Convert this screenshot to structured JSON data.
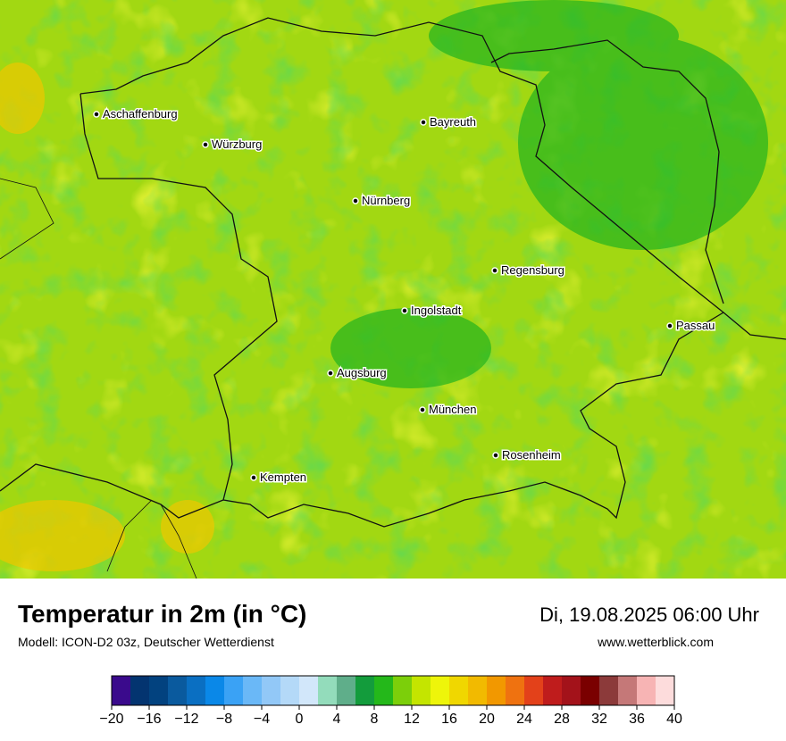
{
  "header": {
    "title": "Temperatur in 2m (in °C)",
    "subtitle": "Modell: ICON-D2 03z, Deutscher Wetterdienst",
    "datetime": "Di, 19.08.2025 06:00 Uhr",
    "website": "www.wetterblick.com"
  },
  "cities": [
    "Aschaffenburg",
    "Würzburg",
    "Bayreuth",
    "Nürnberg",
    "Regensburg",
    "Ingolstadt",
    "Passau",
    "Augsburg",
    "München",
    "Rosenheim",
    "Kempten"
  ],
  "colorbar": {
    "lim": [
      -20,
      40
    ],
    "colors": [
      "#3a0a8c",
      "#033470",
      "#02427f",
      "#0a5a9e",
      "#0a6fc2",
      "#0a88e8",
      "#3aa2f5",
      "#6ab8f7",
      "#92c8f7",
      "#b4d9f8",
      "#d2e7fa",
      "#93dcbb",
      "#5fae8a",
      "#139c3c",
      "#24b81a",
      "#7ccf0a",
      "#c4e500",
      "#eef50a",
      "#f0d700",
      "#f2ba00",
      "#f29800",
      "#ef7210",
      "#e3411a",
      "#bf1c1c",
      "#a3121a",
      "#7a0000",
      "#8c3a3a",
      "#c57878",
      "#f7b4b4",
      "#fddcdc"
    ],
    "ticks": [
      {
        "value": -20,
        "label": "−20"
      },
      {
        "value": -16,
        "label": "−16"
      },
      {
        "value": -12,
        "label": "−12"
      },
      {
        "value": -8,
        "label": "−8"
      },
      {
        "value": -4,
        "label": "−4"
      },
      0,
      4,
      8,
      12,
      16,
      20,
      24,
      28,
      32,
      36,
      40
    ]
  }
}
